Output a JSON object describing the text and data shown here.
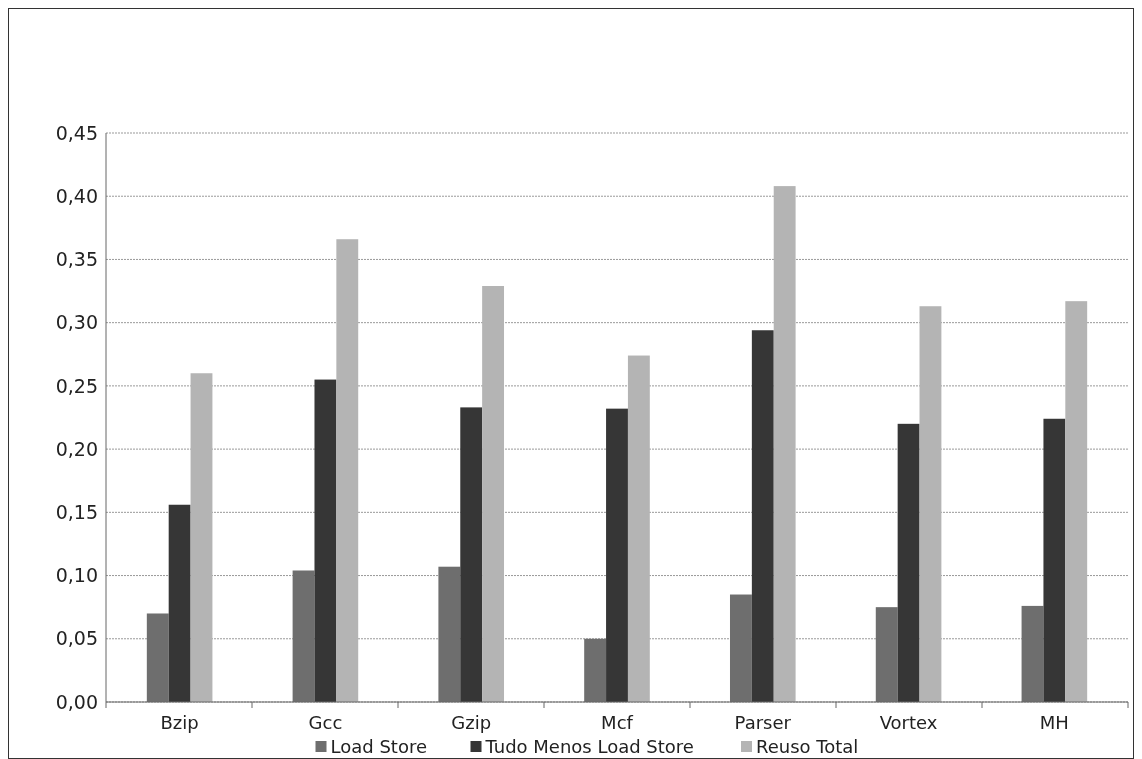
{
  "chart_data": {
    "type": "bar",
    "categories": [
      "Bzip",
      "Gcc",
      "Gzip",
      "Mcf",
      "Parser",
      "Vortex",
      "MH"
    ],
    "series": [
      {
        "name": "Load Store",
        "color": "#6e6e6e",
        "values": [
          0.07,
          0.104,
          0.107,
          0.05,
          0.085,
          0.075,
          0.076
        ]
      },
      {
        "name": "Tudo Menos Load Store",
        "color": "#363636",
        "values": [
          0.156,
          0.255,
          0.233,
          0.232,
          0.294,
          0.22,
          0.224
        ]
      },
      {
        "name": "Reuso Total",
        "color": "#b4b4b4",
        "values": [
          0.26,
          0.366,
          0.329,
          0.274,
          0.408,
          0.313,
          0.317
        ]
      }
    ],
    "ylim": [
      0,
      0.45
    ],
    "yticks": [
      {
        "value": 0,
        "label": "0,00"
      },
      {
        "value": 0.05,
        "label": "0,05"
      },
      {
        "value": 0.1,
        "label": "0,10"
      },
      {
        "value": 0.15,
        "label": "0,15"
      },
      {
        "value": 0.2,
        "label": "0,20"
      },
      {
        "value": 0.25,
        "label": "0,25"
      },
      {
        "value": 0.3,
        "label": "0,30"
      },
      {
        "value": 0.35,
        "label": "0,35"
      },
      {
        "value": 0.4,
        "label": "0,40"
      },
      {
        "value": 0.45,
        "label": "0,45"
      }
    ],
    "grid": "y",
    "legend": "bottom"
  }
}
